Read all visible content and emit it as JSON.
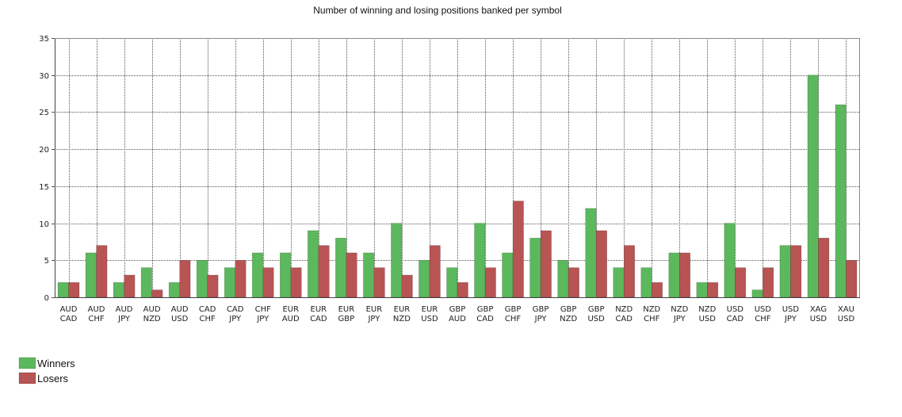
{
  "chart_data": {
    "type": "bar",
    "title": "Number of winning and losing positions banked per symbol",
    "xlabel": "",
    "ylabel": "",
    "ylim": [
      0,
      35
    ],
    "yticks": [
      0,
      5,
      10,
      15,
      20,
      25,
      30,
      35
    ],
    "grid": true,
    "legend_position": "bottom-left",
    "categories": [
      [
        "AUD",
        "CAD"
      ],
      [
        "AUD",
        "CHF"
      ],
      [
        "AUD",
        "JPY"
      ],
      [
        "AUD",
        "NZD"
      ],
      [
        "AUD",
        "USD"
      ],
      [
        "CAD",
        "CHF"
      ],
      [
        "CAD",
        "JPY"
      ],
      [
        "CHF",
        "JPY"
      ],
      [
        "EUR",
        "AUD"
      ],
      [
        "EUR",
        "CAD"
      ],
      [
        "EUR",
        "GBP"
      ],
      [
        "EUR",
        "JPY"
      ],
      [
        "EUR",
        "NZD"
      ],
      [
        "EUR",
        "USD"
      ],
      [
        "GBP",
        "AUD"
      ],
      [
        "GBP",
        "CAD"
      ],
      [
        "GBP",
        "CHF"
      ],
      [
        "GBP",
        "JPY"
      ],
      [
        "GBP",
        "NZD"
      ],
      [
        "GBP",
        "USD"
      ],
      [
        "NZD",
        "CAD"
      ],
      [
        "NZD",
        "CHF"
      ],
      [
        "NZD",
        "JPY"
      ],
      [
        "NZD",
        "USD"
      ],
      [
        "USD",
        "CAD"
      ],
      [
        "USD",
        "CHF"
      ],
      [
        "USD",
        "JPY"
      ],
      [
        "XAG",
        "USD"
      ],
      [
        "XAU",
        "USD"
      ]
    ],
    "series": [
      {
        "name": "Winners",
        "color": "#5cb85c",
        "values": [
          2,
          6,
          2,
          4,
          2,
          5,
          4,
          6,
          6,
          9,
          8,
          6,
          10,
          5,
          4,
          10,
          6,
          8,
          5,
          12,
          4,
          4,
          6,
          2,
          10,
          1,
          7,
          30,
          26
        ]
      },
      {
        "name": "Losers",
        "color": "#b85454",
        "values": [
          2,
          7,
          3,
          1,
          5,
          3,
          5,
          4,
          4,
          7,
          6,
          4,
          3,
          7,
          2,
          4,
          13,
          9,
          4,
          9,
          7,
          2,
          6,
          2,
          4,
          4,
          7,
          8,
          5
        ]
      }
    ]
  }
}
